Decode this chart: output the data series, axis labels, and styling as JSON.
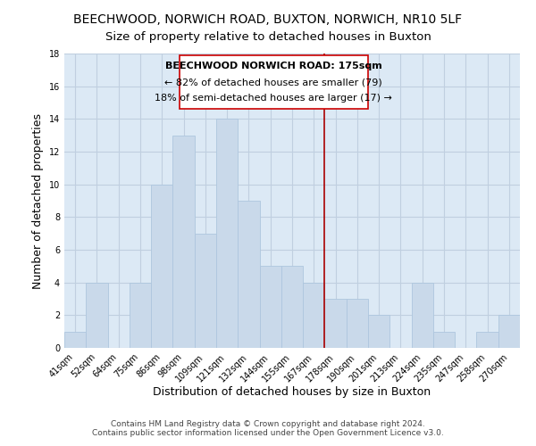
{
  "title": "BEECHWOOD, NORWICH ROAD, BUXTON, NORWICH, NR10 5LF",
  "subtitle": "Size of property relative to detached houses in Buxton",
  "xlabel": "Distribution of detached houses by size in Buxton",
  "ylabel": "Number of detached properties",
  "bar_labels": [
    "41sqm",
    "52sqm",
    "64sqm",
    "75sqm",
    "86sqm",
    "98sqm",
    "109sqm",
    "121sqm",
    "132sqm",
    "144sqm",
    "155sqm",
    "167sqm",
    "178sqm",
    "190sqm",
    "201sqm",
    "213sqm",
    "224sqm",
    "235sqm",
    "247sqm",
    "258sqm",
    "270sqm"
  ],
  "bar_values": [
    1,
    4,
    0,
    4,
    10,
    13,
    7,
    14,
    9,
    5,
    5,
    4,
    3,
    3,
    2,
    0,
    4,
    1,
    0,
    1,
    2
  ],
  "bar_color": "#c9d9ea",
  "bar_edge_color": "#aec6de",
  "background_color": "#ffffff",
  "grid_color": "#c0cfe0",
  "plot_bg_color": "#dce9f5",
  "ylim": [
    0,
    18
  ],
  "yticks": [
    0,
    2,
    4,
    6,
    8,
    10,
    12,
    14,
    16,
    18
  ],
  "property_line_color": "#aa0000",
  "annotation_title": "BEECHWOOD NORWICH ROAD: 175sqm",
  "annotation_line1": "← 82% of detached houses are smaller (79)",
  "annotation_line2": "18% of semi-detached houses are larger (17) →",
  "footnote1": "Contains HM Land Registry data © Crown copyright and database right 2024.",
  "footnote2": "Contains public sector information licensed under the Open Government Licence v3.0.",
  "title_fontsize": 10,
  "subtitle_fontsize": 9.5,
  "label_fontsize": 9,
  "tick_fontsize": 7,
  "annotation_fontsize": 8,
  "footnote_fontsize": 6.5
}
